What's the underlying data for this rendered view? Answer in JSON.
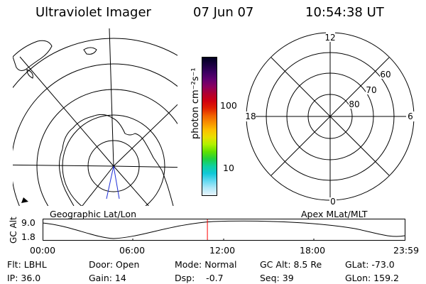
{
  "header": {
    "instrument": "Ultraviolet Imager",
    "date": "07 Jun 07",
    "time": "10:54:38 UT"
  },
  "geo_panel": {
    "label": "Geographic Lat/Lon"
  },
  "colorbar": {
    "unit_label": "photon cm⁻²s⁻¹",
    "ticks": [
      "100",
      "10"
    ],
    "colors": [
      "#000020",
      "#1a0040",
      "#3a0060",
      "#600070",
      "#8a0060",
      "#b00030",
      "#d00010",
      "#e02000",
      "#f06000",
      "#f89000",
      "#fcc000",
      "#e8e000",
      "#b0f000",
      "#60e000",
      "#20d040",
      "#10d0a0",
      "#10c8d8",
      "#60d8f0",
      "#b0e8f8",
      "#e8f4fc"
    ]
  },
  "mag_panel": {
    "label": "Apex MLat/MLT",
    "mlt_labels": {
      "top": "12",
      "left": "18",
      "right": "6",
      "bottom": "0"
    },
    "lat_labels": [
      "60",
      "70",
      "80"
    ]
  },
  "altitude_plot": {
    "ylabel": "GC Alt",
    "yticks": [
      "9.0",
      "1.8"
    ],
    "xticks": [
      "00:00",
      "06:00",
      "12:00",
      "18:00",
      "23:59"
    ],
    "marker_time_fraction": 0.455,
    "marker_color": "#ff0000"
  },
  "info": {
    "flt": "Flt: LBHL",
    "ip": "IP: 36.0",
    "door": "Door: Open",
    "gain": "Gain: 14",
    "mode": "Mode: Normal",
    "dsp": "Dsp:    -0.7",
    "gc_alt": "GC Alt: 8.5 Re",
    "seq": "Seq: 39",
    "glat": "GLat: -73.0",
    "glon": "GLon: 159.2"
  }
}
